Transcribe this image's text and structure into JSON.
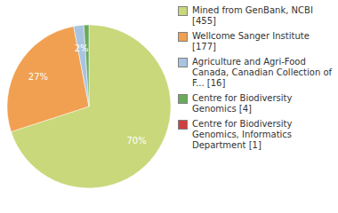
{
  "chart_data": {
    "type": "pie",
    "categories": [
      "Mined from GenBank, NCBI [455]",
      "Wellcome Sanger Institute [177]",
      "Agriculture and Agri-Food\nCanada, Canadian Collection of\nF... [16]",
      "Centre for Biodiversity\nGenomics [4]",
      "Centre for Biodiversity\nGenomics, Informatics\nDepartment [1]"
    ],
    "values": [
      70,
      27,
      2,
      1,
      0
    ],
    "value_labels": [
      "70%",
      "27%",
      "2%",
      null,
      null
    ],
    "colors": [
      "#c8d87a",
      "#f0a050",
      "#a8c4e0",
      "#6aaa5a",
      "#d04040"
    ],
    "data_labels": true,
    "legend": "right"
  }
}
